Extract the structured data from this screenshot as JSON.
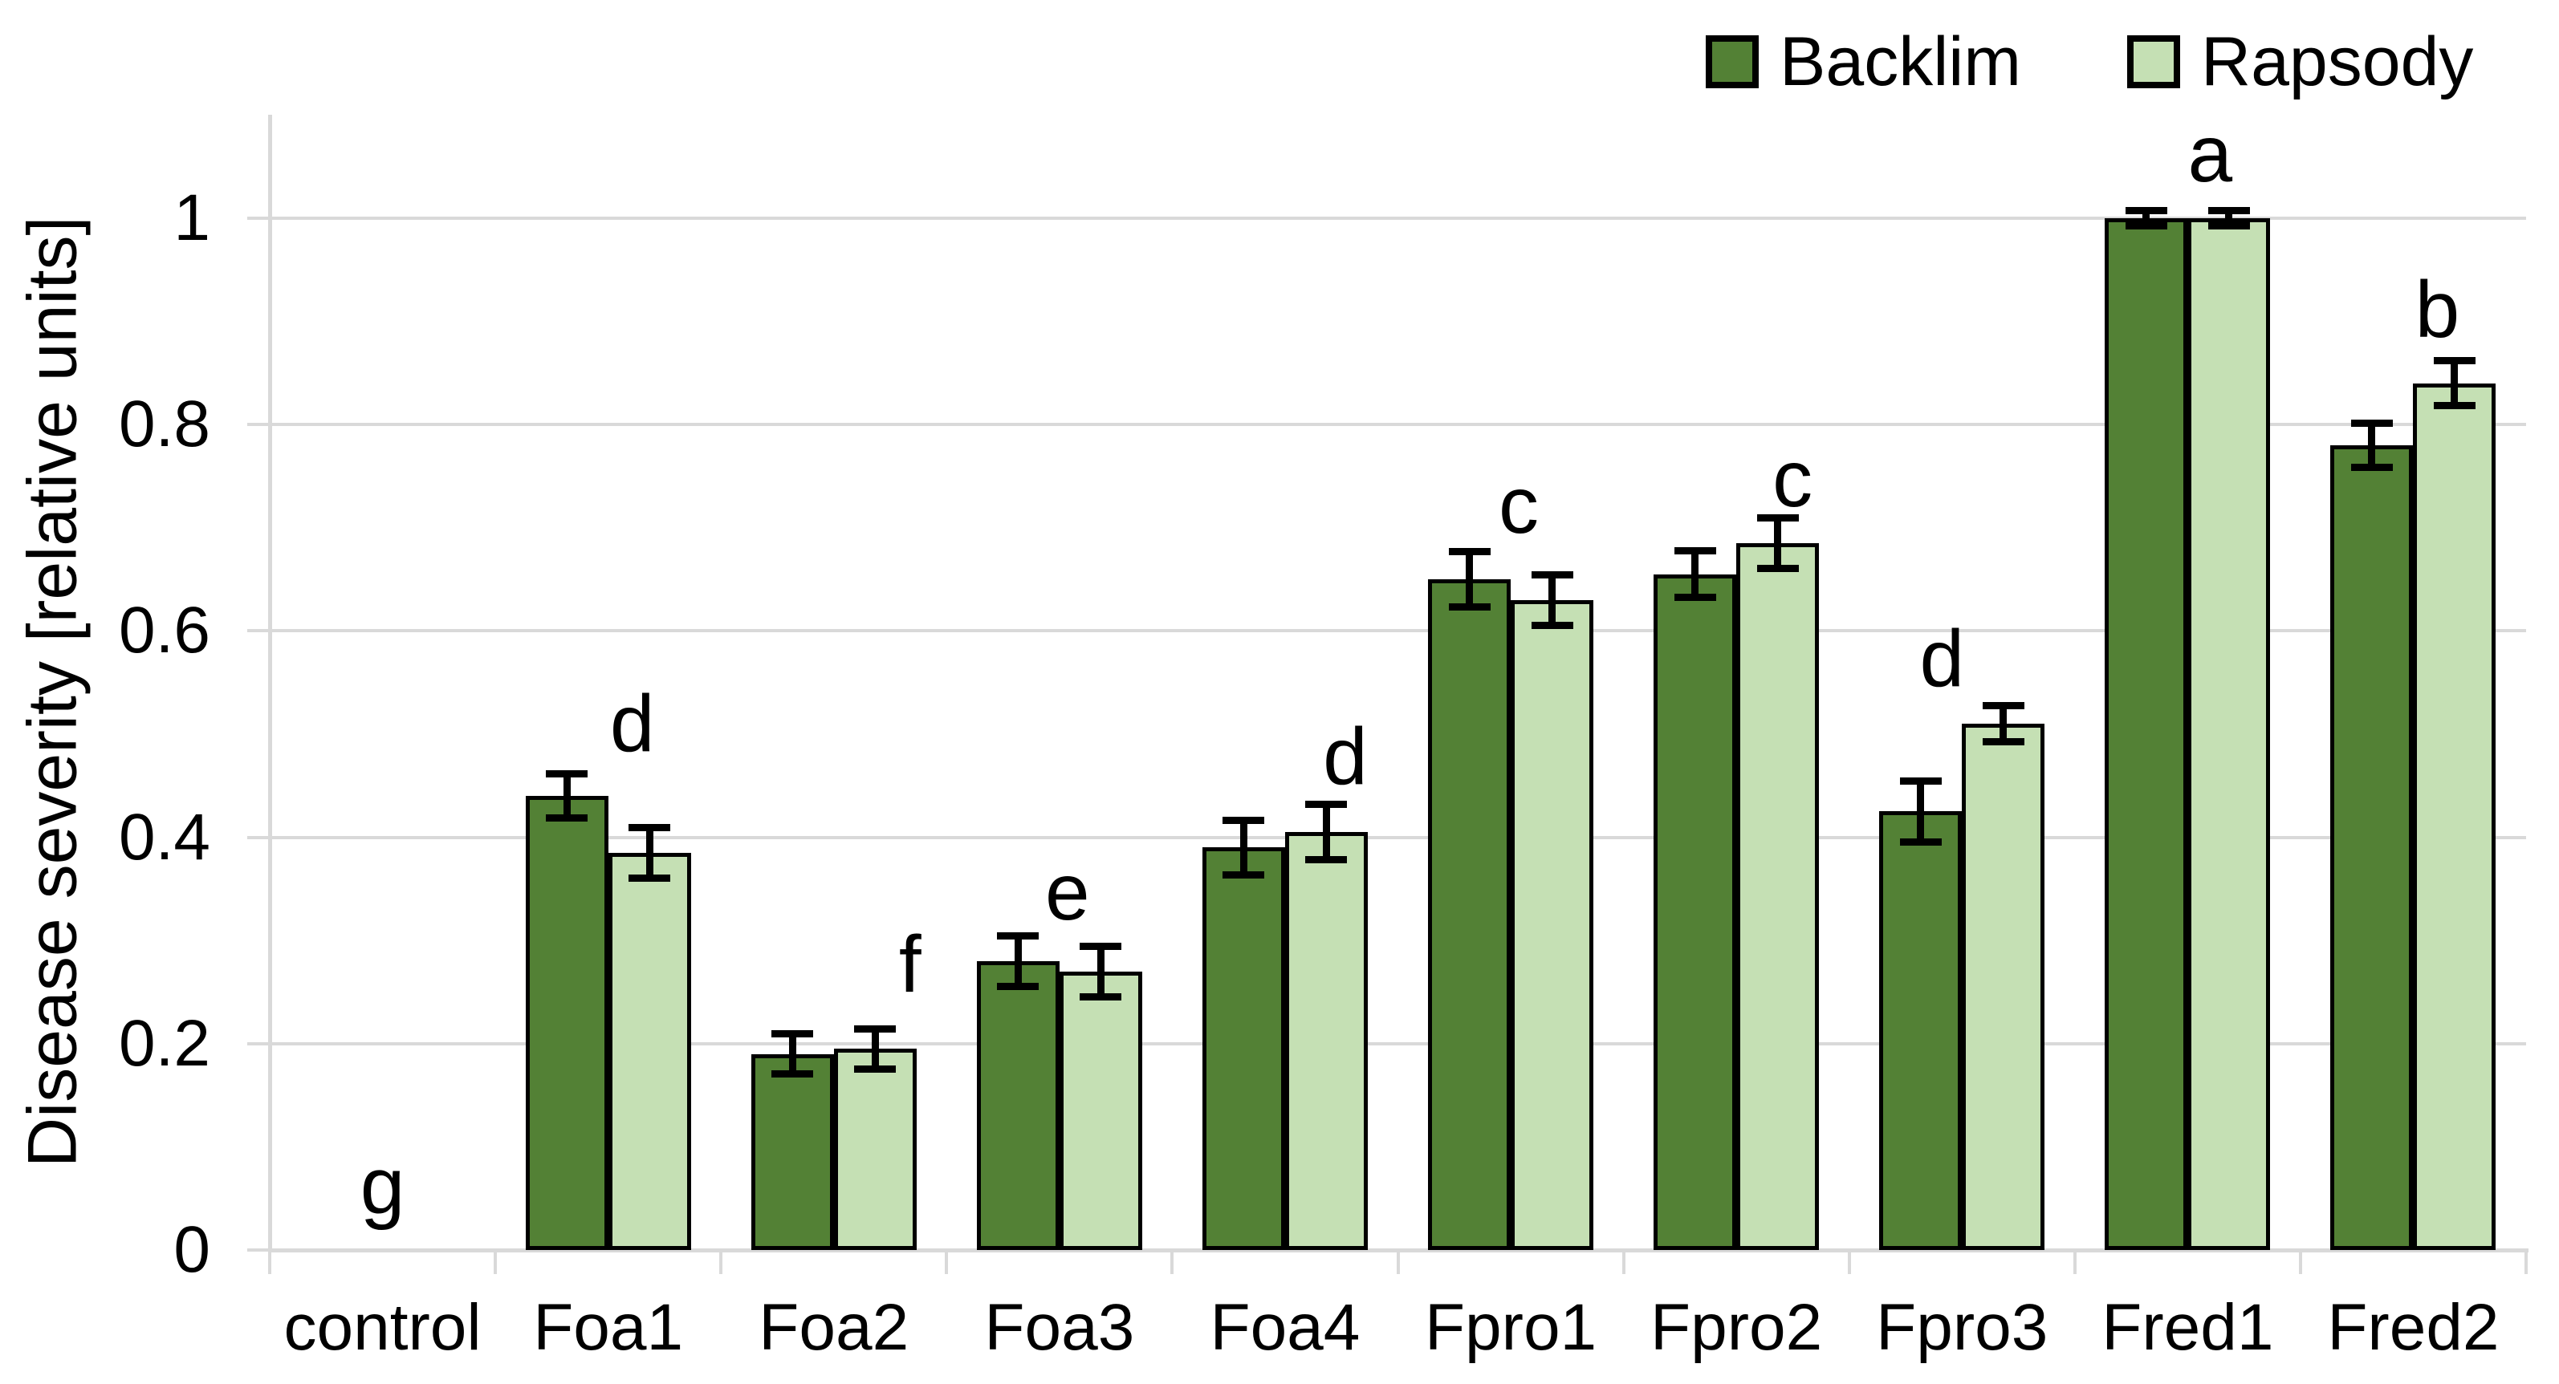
{
  "chart_data": {
    "type": "bar",
    "title": "",
    "xlabel": "",
    "ylabel": "Disease severity [relative units]",
    "categories": [
      "control",
      "Foa1",
      "Foa2",
      "Foa3",
      "Foa4",
      "Fpro1",
      "Fpro2",
      "Fpro3",
      "Fred1",
      "Fred2"
    ],
    "series": [
      {
        "name": "Backlim",
        "color": "#538135",
        "values": [
          0,
          0.44,
          0.19,
          0.28,
          0.39,
          0.65,
          0.655,
          0.425,
          1.0,
          0.78
        ],
        "errors": [
          0,
          0.022,
          0.02,
          0.025,
          0.027,
          0.027,
          0.023,
          0.03,
          0.008,
          0.022
        ]
      },
      {
        "name": "Rapsody",
        "color": "#c5e0b4",
        "values": [
          0,
          0.385,
          0.195,
          0.27,
          0.405,
          0.63,
          0.685,
          0.51,
          1.0,
          0.84
        ],
        "errors": [
          0,
          0.025,
          0.02,
          0.025,
          0.027,
          0.025,
          0.025,
          0.018,
          0.008,
          0.022
        ]
      }
    ],
    "group_letters": [
      "g",
      "d",
      "f",
      "e",
      "d",
      "c",
      "c",
      "d",
      "a",
      "b"
    ],
    "letter_y": [
      0.062,
      0.51,
      0.277,
      0.347,
      0.478,
      0.722,
      0.747,
      0.573,
      1.062,
      0.911
    ],
    "letter_dx": [
      0,
      30,
      95,
      10,
      75,
      10,
      70,
      -25,
      28,
      30
    ],
    "y_ticks": [
      {
        "label": "0",
        "value": 0
      },
      {
        "label": "0.2",
        "value": 0.2
      },
      {
        "label": "0.4",
        "value": 0.4
      },
      {
        "label": "0.6",
        "value": 0.6
      },
      {
        "label": "0.8",
        "value": 0.8
      },
      {
        "label": "1",
        "value": 1
      }
    ],
    "ylim": [
      0,
      1.1
    ],
    "grid": true,
    "legend_position": "top-right",
    "error_bars": true
  },
  "colors": {
    "grid": "#d9d9d9",
    "axis": "#d9d9d9",
    "bar_border": "#000000",
    "text": "#000000",
    "background": "#ffffff"
  }
}
